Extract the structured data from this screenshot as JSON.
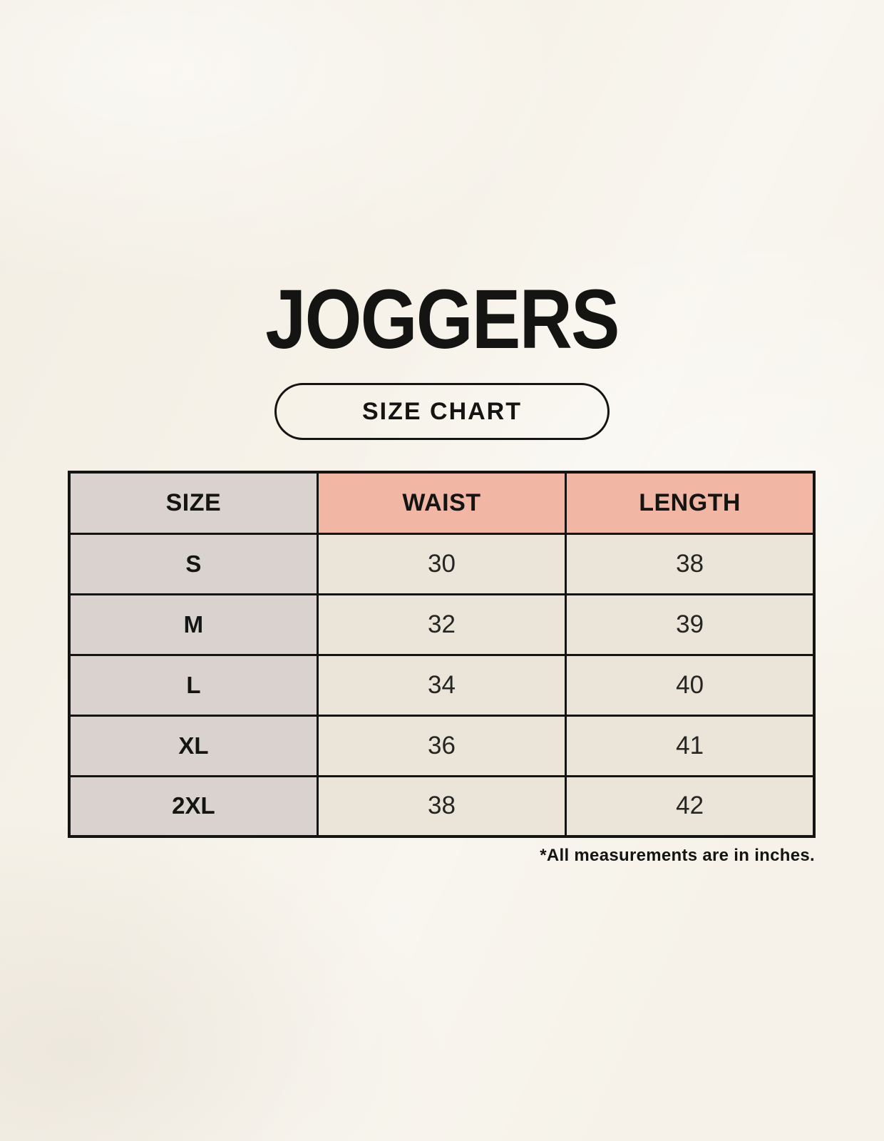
{
  "title": "JOGGERS",
  "badge": {
    "label": "SIZE CHART"
  },
  "footnote": "*All measurements are in inches.",
  "chart_data": {
    "type": "table",
    "title": "JOGGERS",
    "subtitle": "SIZE CHART",
    "columns": [
      "SIZE",
      "WAIST",
      "LENGTH"
    ],
    "rows": [
      [
        "S",
        "30",
        "38"
      ],
      [
        "M",
        "32",
        "39"
      ],
      [
        "L",
        "34",
        "40"
      ],
      [
        "XL",
        "36",
        "41"
      ],
      [
        "2XL",
        "38",
        "42"
      ]
    ],
    "units": "inches",
    "footnote": "*All measurements are in inches.",
    "layout": {
      "legend_position": "none",
      "grid": "full-borders",
      "columns_equal_width": true
    }
  },
  "colors": {
    "background": "#F6F2E9",
    "size_column_fill": "#D9D2CF",
    "measure_header_fill": "#F1B6A4",
    "value_cell_fill": "#EAE4D9",
    "border": "#141412",
    "text": "#141412"
  }
}
